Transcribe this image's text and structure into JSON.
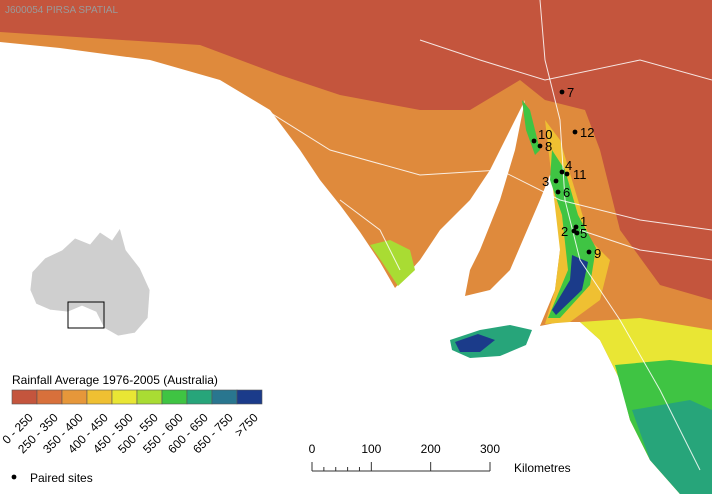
{
  "credit": "J600054 PIRSA SPATIAL",
  "sites": [
    "1",
    "2",
    "3",
    "4",
    "5",
    "6",
    "7",
    "8",
    "9",
    "10",
    "11",
    "12"
  ],
  "legend": {
    "title": "Rainfall Average 1976-2005 (Australia)",
    "classes": [
      {
        "label": "0 - 250",
        "color": "#c4553d"
      },
      {
        "label": "250 - 350",
        "color": "#d8703b"
      },
      {
        "label": "350 - 400",
        "color": "#e6973a"
      },
      {
        "label": "400 - 450",
        "color": "#efc032"
      },
      {
        "label": "450 - 500",
        "color": "#e9e634"
      },
      {
        "label": "500 - 550",
        "color": "#a9dc33"
      },
      {
        "label": "550 - 600",
        "color": "#3fc443"
      },
      {
        "label": "600 - 650",
        "color": "#27a57a"
      },
      {
        "label": "650 - 750",
        "color": "#29768f"
      },
      {
        "label": ">750",
        "color": "#1b3b8a"
      }
    ],
    "sites_label": "Paired sites"
  },
  "scale_bar": {
    "ticks": [
      0,
      100,
      200,
      300
    ],
    "unit": "Kilometres"
  }
}
